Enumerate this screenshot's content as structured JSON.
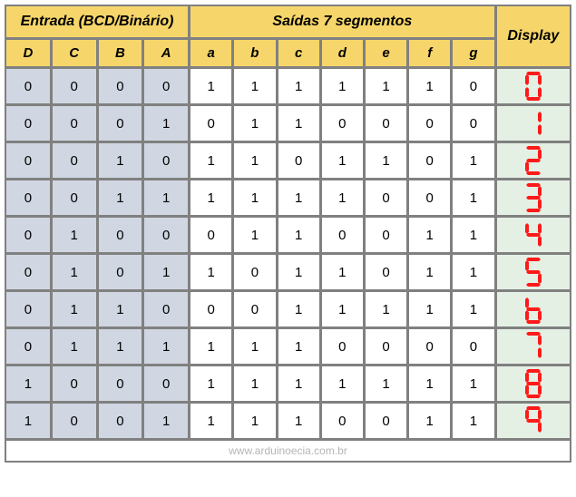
{
  "table": {
    "header_entrada": "Entrada (BCD/Binário)",
    "header_saidas": "Saídas 7 segmentos",
    "header_display": "Display",
    "input_cols": [
      "D",
      "C",
      "B",
      "A"
    ],
    "output_cols": [
      "a",
      "b",
      "c",
      "d",
      "e",
      "f",
      "g"
    ],
    "rows": [
      {
        "in": [
          0,
          0,
          0,
          0
        ],
        "out": [
          1,
          1,
          1,
          1,
          1,
          1,
          0
        ],
        "digit": 0
      },
      {
        "in": [
          0,
          0,
          0,
          1
        ],
        "out": [
          0,
          1,
          1,
          0,
          0,
          0,
          0
        ],
        "digit": 1
      },
      {
        "in": [
          0,
          0,
          1,
          0
        ],
        "out": [
          1,
          1,
          0,
          1,
          1,
          0,
          1
        ],
        "digit": 2
      },
      {
        "in": [
          0,
          0,
          1,
          1
        ],
        "out": [
          1,
          1,
          1,
          1,
          0,
          0,
          1
        ],
        "digit": 3
      },
      {
        "in": [
          0,
          1,
          0,
          0
        ],
        "out": [
          0,
          1,
          1,
          0,
          0,
          1,
          1
        ],
        "digit": 4
      },
      {
        "in": [
          0,
          1,
          0,
          1
        ],
        "out": [
          1,
          0,
          1,
          1,
          0,
          1,
          1
        ],
        "digit": 5
      },
      {
        "in": [
          0,
          1,
          1,
          0
        ],
        "out": [
          0,
          0,
          1,
          1,
          1,
          1,
          1
        ],
        "digit": 6
      },
      {
        "in": [
          0,
          1,
          1,
          1
        ],
        "out": [
          1,
          1,
          1,
          0,
          0,
          0,
          0
        ],
        "digit": 7
      },
      {
        "in": [
          1,
          0,
          0,
          0
        ],
        "out": [
          1,
          1,
          1,
          1,
          1,
          1,
          1
        ],
        "digit": 8
      },
      {
        "in": [
          1,
          0,
          0,
          1
        ],
        "out": [
          1,
          1,
          1,
          0,
          0,
          1,
          1
        ],
        "digit": 9
      }
    ],
    "footer": "www.arduinoecia.com.br",
    "colors": {
      "header_bg": "#f6d66a",
      "input_bg": "#d0d7e2",
      "output_bg": "#ffffff",
      "display_bg": "#e4f0e4",
      "border": "#808080",
      "seg_on": "#ff1a1a",
      "seg_off": "none",
      "footer_text": "#b5b5b5"
    },
    "col_widths": {
      "input": 48,
      "output": 48,
      "display": 82
    },
    "seg_display": {
      "width": 24,
      "height": 34
    }
  }
}
